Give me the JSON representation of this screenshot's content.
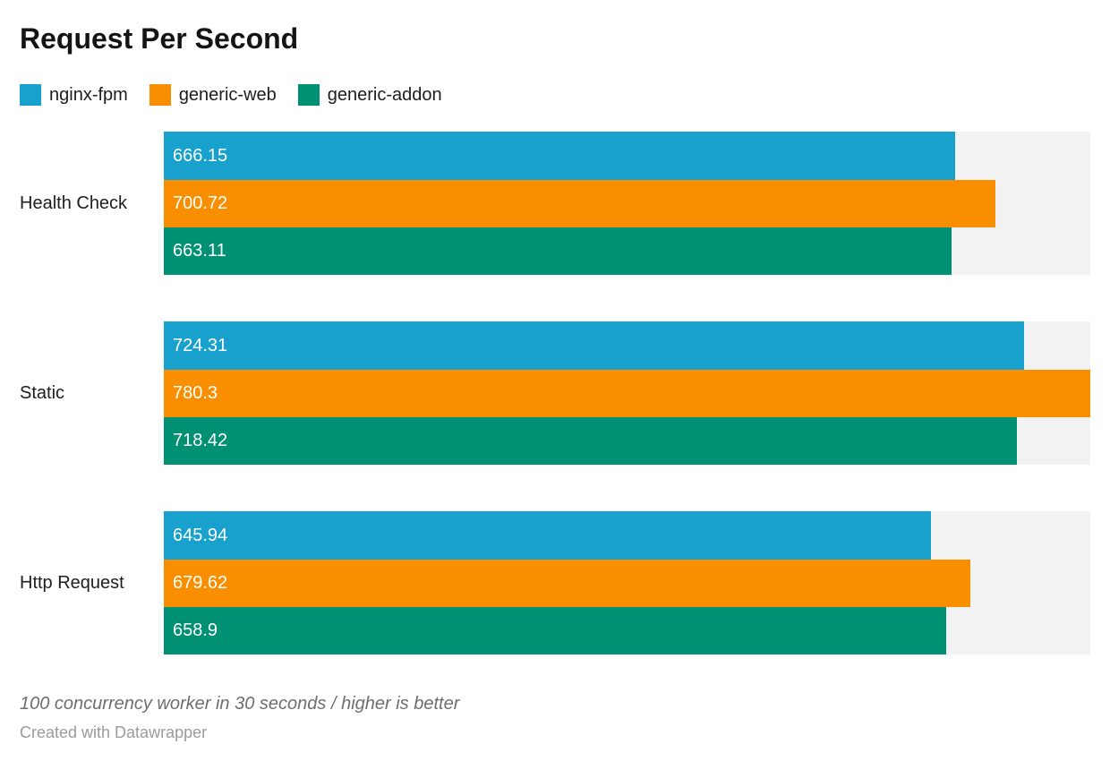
{
  "chart_data": {
    "type": "bar",
    "orientation": "horizontal",
    "title": "Request Per Second",
    "categories": [
      "Health Check",
      "Static",
      "Http Request"
    ],
    "series": [
      {
        "name": "nginx-fpm",
        "color": "#18a1cd",
        "values": [
          666.15,
          724.31,
          645.94
        ]
      },
      {
        "name": "generic-web",
        "color": "#f98f00",
        "values": [
          700.72,
          780.3,
          679.62
        ]
      },
      {
        "name": "generic-addon",
        "color": "#009073",
        "values": [
          663.11,
          718.42,
          658.9
        ]
      }
    ],
    "xlim": [
      0,
      780.3
    ],
    "value_labels": true,
    "grid": false,
    "legend_position": "top",
    "track_color": "#f2f2f2",
    "value_label_color": "#ffffff",
    "note": "100 concurrency worker in 30 seconds / higher is better",
    "credit": "Created with Datawrapper"
  }
}
